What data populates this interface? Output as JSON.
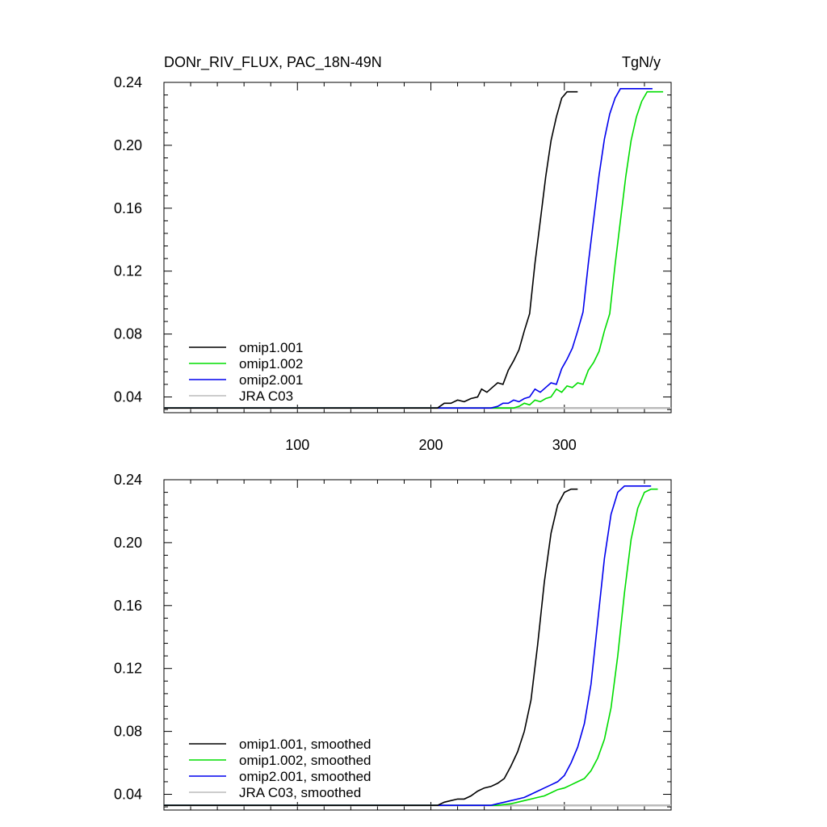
{
  "header": {
    "title": "DONr_RIV_FLUX, PAC_18N-49N",
    "units": "TgN/y"
  },
  "chart_data": [
    {
      "type": "line",
      "title": "DONr_RIV_FLUX, PAC_18N-49N",
      "units_label": "TgN/y",
      "xlim": [
        0,
        380
      ],
      "ylim": [
        0.03,
        0.24
      ],
      "xticks": [
        100,
        200,
        300
      ],
      "xtick_labels": [
        "100",
        "200",
        "300"
      ],
      "yticks": [
        0.04,
        0.08,
        0.12,
        0.16,
        0.2,
        0.24
      ],
      "ytick_labels": [
        "0.04",
        "0.08",
        "0.12",
        "0.16",
        "0.20",
        "0.24"
      ],
      "grid": false,
      "legend_position": "bottom-left",
      "series": [
        {
          "name": "omip1.001",
          "color": "#000000",
          "x": [
            0,
            205,
            210,
            215,
            220,
            225,
            230,
            235,
            238,
            242,
            246,
            250,
            254,
            258,
            262,
            266,
            270,
            274,
            278,
            282,
            286,
            290,
            294,
            298,
            302,
            306,
            310
          ],
          "y": [
            0.033,
            0.033,
            0.036,
            0.036,
            0.038,
            0.037,
            0.039,
            0.04,
            0.045,
            0.043,
            0.046,
            0.049,
            0.048,
            0.057,
            0.063,
            0.07,
            0.082,
            0.093,
            0.125,
            0.152,
            0.18,
            0.203,
            0.218,
            0.23,
            0.234,
            0.234,
            0.234
          ]
        },
        {
          "name": "omip1.002",
          "color": "#00dd00",
          "x": [
            0,
            250,
            258,
            262,
            266,
            270,
            274,
            278,
            282,
            286,
            290,
            294,
            298,
            302,
            306,
            310,
            314,
            318,
            322,
            326,
            330,
            334,
            338,
            342,
            346,
            350,
            354,
            358,
            362,
            366,
            370,
            374
          ],
          "y": [
            0.033,
            0.033,
            0.033,
            0.033,
            0.034,
            0.036,
            0.035,
            0.038,
            0.037,
            0.039,
            0.04,
            0.045,
            0.043,
            0.047,
            0.046,
            0.049,
            0.048,
            0.057,
            0.062,
            0.069,
            0.082,
            0.093,
            0.124,
            0.152,
            0.18,
            0.203,
            0.218,
            0.228,
            0.234,
            0.234,
            0.234,
            0.234
          ]
        },
        {
          "name": "omip2.001",
          "color": "#0000ee",
          "x": [
            0,
            245,
            250,
            254,
            258,
            262,
            266,
            270,
            274,
            278,
            282,
            286,
            290,
            294,
            298,
            302,
            306,
            310,
            314,
            318,
            322,
            326,
            330,
            334,
            338,
            342,
            346,
            350,
            354,
            358,
            362,
            366
          ],
          "y": [
            0.033,
            0.033,
            0.034,
            0.036,
            0.036,
            0.038,
            0.037,
            0.039,
            0.04,
            0.045,
            0.043,
            0.046,
            0.049,
            0.048,
            0.058,
            0.064,
            0.071,
            0.082,
            0.094,
            0.125,
            0.153,
            0.181,
            0.204,
            0.22,
            0.23,
            0.236,
            0.236,
            0.236,
            0.236,
            0.236,
            0.236,
            0.236
          ]
        },
        {
          "name": "JRA C03",
          "color": "#bbbbbb",
          "x": [
            0,
            380
          ],
          "y": [
            0.033,
            0.033
          ]
        }
      ]
    },
    {
      "type": "line",
      "xlim": [
        0,
        380
      ],
      "ylim": [
        0.03,
        0.24
      ],
      "xticks": [
        100,
        200,
        300
      ],
      "yticks": [
        0.04,
        0.08,
        0.12,
        0.16,
        0.2,
        0.24
      ],
      "ytick_labels": [
        "0.04",
        "0.08",
        "0.12",
        "0.16",
        "0.20",
        "0.24"
      ],
      "grid": false,
      "legend_position": "bottom-left",
      "series": [
        {
          "name": "omip1.001, smoothed",
          "color": "#000000",
          "x": [
            0,
            205,
            210,
            215,
            220,
            225,
            230,
            235,
            240,
            245,
            250,
            255,
            260,
            265,
            270,
            275,
            280,
            285,
            290,
            295,
            300,
            305,
            310
          ],
          "y": [
            0.033,
            0.033,
            0.035,
            0.036,
            0.037,
            0.037,
            0.039,
            0.042,
            0.044,
            0.045,
            0.047,
            0.05,
            0.058,
            0.067,
            0.08,
            0.1,
            0.135,
            0.175,
            0.206,
            0.224,
            0.232,
            0.234,
            0.234
          ]
        },
        {
          "name": "omip1.002, smoothed",
          "color": "#00dd00",
          "x": [
            0,
            250,
            260,
            265,
            270,
            275,
            280,
            285,
            290,
            295,
            300,
            305,
            310,
            315,
            320,
            325,
            330,
            335,
            340,
            345,
            350,
            355,
            360,
            365,
            370
          ],
          "y": [
            0.033,
            0.033,
            0.034,
            0.035,
            0.036,
            0.037,
            0.038,
            0.039,
            0.041,
            0.043,
            0.044,
            0.046,
            0.048,
            0.05,
            0.055,
            0.063,
            0.075,
            0.095,
            0.128,
            0.168,
            0.202,
            0.222,
            0.232,
            0.234,
            0.234
          ]
        },
        {
          "name": "omip2.001, smoothed",
          "color": "#0000ee",
          "x": [
            0,
            245,
            250,
            255,
            260,
            265,
            270,
            275,
            280,
            285,
            290,
            295,
            300,
            305,
            310,
            315,
            320,
            325,
            330,
            335,
            340,
            345,
            350,
            355,
            360,
            365
          ],
          "y": [
            0.033,
            0.033,
            0.034,
            0.035,
            0.036,
            0.037,
            0.038,
            0.04,
            0.042,
            0.044,
            0.046,
            0.048,
            0.052,
            0.06,
            0.07,
            0.085,
            0.11,
            0.15,
            0.19,
            0.218,
            0.232,
            0.236,
            0.236,
            0.236,
            0.236,
            0.236
          ]
        },
        {
          "name": "JRA C03, smoothed",
          "color": "#bbbbbb",
          "x": [
            0,
            380
          ],
          "y": [
            0.033,
            0.033
          ]
        }
      ]
    }
  ]
}
